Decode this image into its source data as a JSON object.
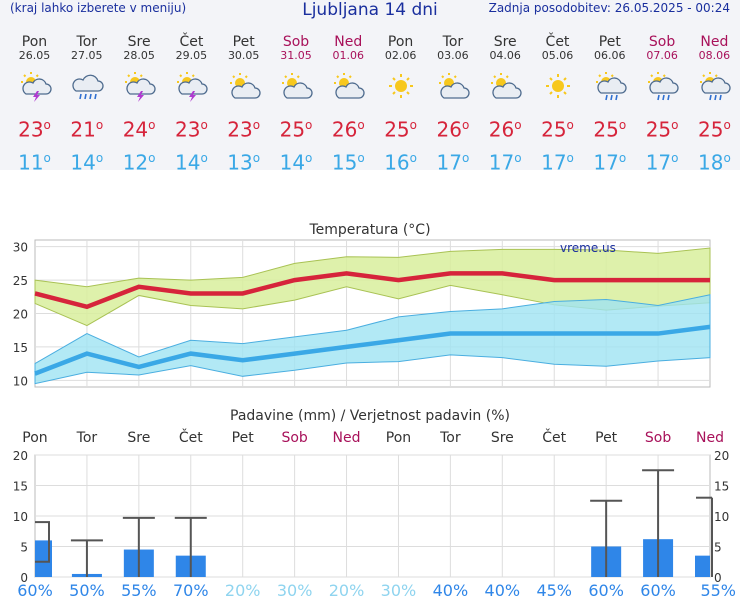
{
  "header": {
    "note": "(kraj lahko izberete v meniju)",
    "title": "Ljubljana 14 dni",
    "updated": "Zadnja posodobitev: 26.05.2025 - 00:24"
  },
  "days": [
    {
      "name": "Pon",
      "date": "26.05",
      "icon": "sun-cloud-thunder-icon",
      "max": "23",
      "min": "11",
      "weekend": false
    },
    {
      "name": "Tor",
      "date": "27.05",
      "icon": "cloud-rain-icon",
      "max": "21",
      "min": "14",
      "weekend": false
    },
    {
      "name": "Sre",
      "date": "28.05",
      "icon": "sun-cloud-thunder-icon",
      "max": "24",
      "min": "12",
      "weekend": false
    },
    {
      "name": "Čet",
      "date": "29.05",
      "icon": "sun-cloud-thunder-icon",
      "max": "23",
      "min": "14",
      "weekend": false
    },
    {
      "name": "Pet",
      "date": "30.05",
      "icon": "sun-cloud-icon",
      "max": "23",
      "min": "13",
      "weekend": false
    },
    {
      "name": "Sob",
      "date": "31.05",
      "icon": "sun-cloud-icon",
      "max": "25",
      "min": "14",
      "weekend": true
    },
    {
      "name": "Ned",
      "date": "01.06",
      "icon": "sun-cloud-icon",
      "max": "26",
      "min": "15",
      "weekend": true
    },
    {
      "name": "Pon",
      "date": "02.06",
      "icon": "sun-icon",
      "max": "25",
      "min": "16",
      "weekend": false
    },
    {
      "name": "Tor",
      "date": "03.06",
      "icon": "sun-cloud-icon",
      "max": "26",
      "min": "17",
      "weekend": false
    },
    {
      "name": "Sre",
      "date": "04.06",
      "icon": "sun-cloud-icon",
      "max": "26",
      "min": "17",
      "weekend": false
    },
    {
      "name": "Čet",
      "date": "05.06",
      "icon": "sun-icon",
      "max": "25",
      "min": "17",
      "weekend": false
    },
    {
      "name": "Pet",
      "date": "06.06",
      "icon": "sun-cloud-rain-icon",
      "max": "25",
      "min": "17",
      "weekend": false
    },
    {
      "name": "Sob",
      "date": "07.06",
      "icon": "sun-cloud-rain-icon",
      "max": "25",
      "min": "17",
      "weekend": true
    },
    {
      "name": "Ned",
      "date": "08.06",
      "icon": "sun-cloud-rain-icon",
      "max": "25",
      "min": "18",
      "weekend": true
    }
  ],
  "colors": {
    "max": "#d6243b",
    "min": "#3aa8e6",
    "weekend": "#a8115a",
    "bar": "#2f86e8",
    "band_max": "#d8ee9c",
    "band_min": "#9fe3f2"
  },
  "chart_data": [
    {
      "type": "line",
      "title": "Temperatura (°C)",
      "watermark": "vreme.us",
      "ylim": [
        9,
        31
      ],
      "yticks": [
        10,
        15,
        20,
        25,
        30
      ],
      "x": [
        0,
        1,
        2,
        3,
        4,
        5,
        6,
        7,
        8,
        9,
        10,
        11,
        12,
        13
      ],
      "series": [
        {
          "name": "max",
          "values": [
            23,
            21,
            24,
            23,
            23,
            25,
            26,
            25,
            26,
            26,
            25,
            25,
            25,
            25
          ]
        },
        {
          "name": "max_high",
          "values": [
            25,
            24,
            25.3,
            25,
            25.4,
            27.5,
            28.5,
            28.4,
            29.3,
            29.6,
            29.6,
            29.5,
            29,
            29.8
          ]
        },
        {
          "name": "max_low",
          "values": [
            21.5,
            18.2,
            22.7,
            21.2,
            20.7,
            22,
            24,
            22.2,
            24.2,
            22.8,
            21.3,
            20.5,
            21.1,
            21.6
          ]
        },
        {
          "name": "min",
          "values": [
            11,
            14,
            12,
            14,
            13,
            14,
            15,
            16,
            17,
            17,
            17,
            17,
            17,
            18
          ]
        },
        {
          "name": "min_high",
          "values": [
            12.5,
            17,
            13.5,
            16,
            15.5,
            16.5,
            17.5,
            19.5,
            20.3,
            20.7,
            21.8,
            22.1,
            21.2,
            22.8
          ]
        },
        {
          "name": "min_low",
          "values": [
            9.5,
            11.2,
            10.8,
            12.2,
            10.6,
            11.5,
            12.6,
            12.8,
            13.8,
            13.4,
            12.4,
            12.1,
            12.9,
            13.4
          ]
        }
      ]
    },
    {
      "type": "bar",
      "title": "Padavine (mm) / Verjetnost padavin (%)",
      "ylim": [
        0,
        20
      ],
      "yticks": [
        0,
        5,
        10,
        15,
        20
      ],
      "categories": [
        "Pon",
        "Tor",
        "Sre",
        "Čet",
        "Pet",
        "Sob",
        "Ned",
        "Pon",
        "Tor",
        "Sre",
        "Čet",
        "Pet",
        "Sob",
        "Ned"
      ],
      "values": [
        6,
        0.5,
        4.5,
        3.5,
        0,
        0,
        0,
        0,
        0,
        0,
        0,
        5,
        6.2,
        3.5
      ],
      "error_low": [
        2.5,
        0,
        0,
        0,
        0,
        0,
        0,
        0,
        0,
        0,
        0,
        0,
        0,
        0
      ],
      "error_high": [
        9,
        6,
        9.7,
        9.7,
        0,
        0,
        0,
        0,
        0,
        0,
        0,
        12.5,
        17.5,
        13
      ],
      "probability": [
        "60%",
        "50%",
        "55%",
        "70%",
        "20%",
        "30%",
        "20%",
        "30%",
        "40%",
        "40%",
        "45%",
        "60%",
        "60%",
        "55%"
      ]
    }
  ]
}
